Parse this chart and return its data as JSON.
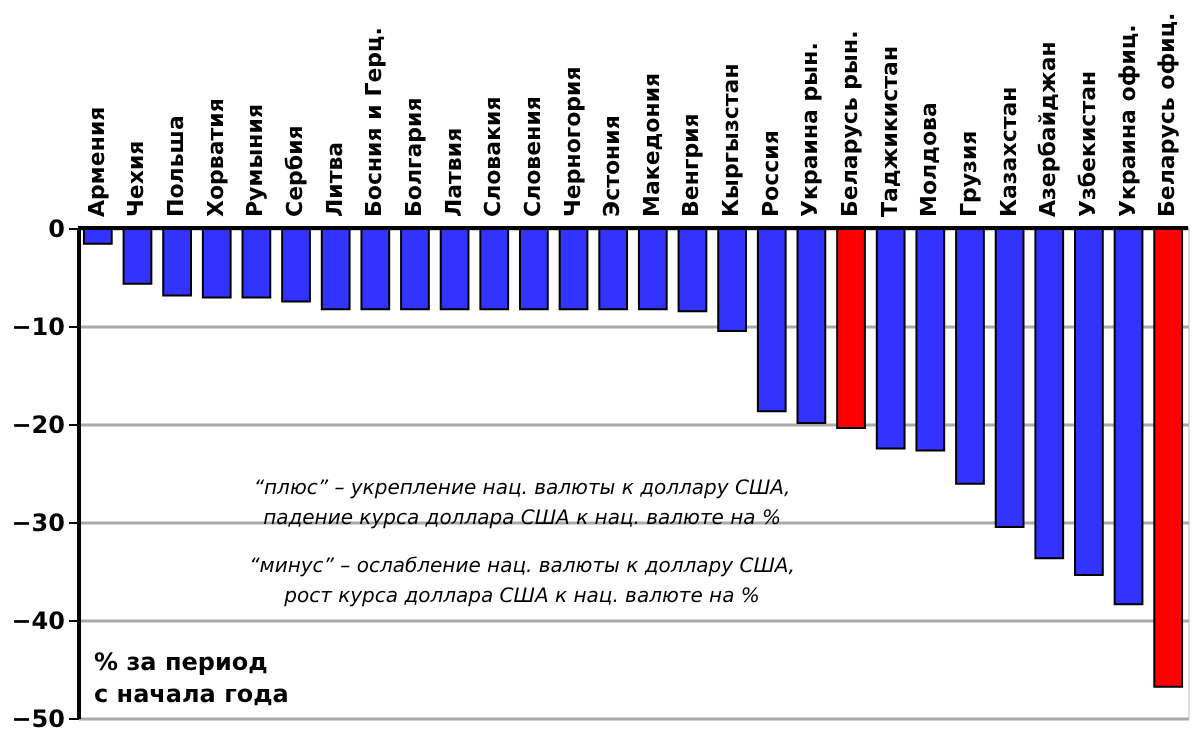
{
  "chart_data": {
    "type": "bar",
    "ylabel": "% за период\nс начала года",
    "categories": [
      "Армения",
      "Чехия",
      "Польша",
      "Хорватия",
      "Румыния",
      "Сербия",
      "Литва",
      "Босния и Герц.",
      "Болгария",
      "Латвия",
      "Словакия",
      "Словения",
      "Черногория",
      "Эстония",
      "Македония",
      "Венгрия",
      "Кыргызстан",
      "Россия",
      "Украина рын.",
      "Беларусь рын.",
      "Таджикистан",
      "Молдова",
      "Грузия",
      "Казахстан",
      "Азербайджан",
      "Узбекистан",
      "Украина офиц.",
      "Беларусь офиц."
    ],
    "values": [
      -1.6,
      -5.7,
      -6.9,
      -7.1,
      -7.1,
      -7.5,
      -8.3,
      -8.3,
      -8.3,
      -8.3,
      -8.3,
      -8.3,
      -8.3,
      -8.3,
      -8.3,
      -8.5,
      -10.5,
      -18.7,
      -19.9,
      -20.4,
      -22.5,
      -22.7,
      -26.1,
      -30.5,
      -33.7,
      -35.4,
      -38.4,
      -46.8
    ],
    "colors": [
      "#3333ff",
      "#3333ff",
      "#3333ff",
      "#3333ff",
      "#3333ff",
      "#3333ff",
      "#3333ff",
      "#3333ff",
      "#3333ff",
      "#3333ff",
      "#3333ff",
      "#3333ff",
      "#3333ff",
      "#3333ff",
      "#3333ff",
      "#3333ff",
      "#3333ff",
      "#3333ff",
      "#3333ff",
      "#ff0000",
      "#3333ff",
      "#3333ff",
      "#3333ff",
      "#3333ff",
      "#3333ff",
      "#3333ff",
      "#3333ff",
      "#ff0000"
    ],
    "ylim": [
      -50,
      0
    ],
    "yticks": [
      -50,
      -40,
      -30,
      -20,
      -10,
      0
    ],
    "grid": "y",
    "annotations": [
      "“плюс” – укрепление нац. валюты к доллару США,\nпадение курса доллара США к нац. валюте на %",
      "“минус” – ослабление нац. валюты к доллару США,\nрост курса доллара США к нац. валюте на %"
    ]
  }
}
